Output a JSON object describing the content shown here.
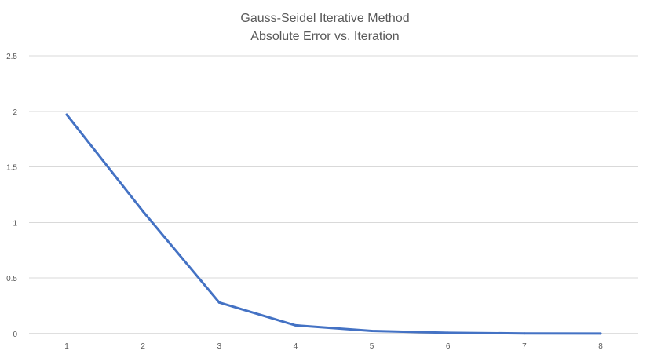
{
  "chart_data": {
    "type": "line",
    "title": "Gauss-Seidel Iterative Method",
    "subtitle": "Absolute Error vs. Iteration",
    "xlabel": "",
    "ylabel": "",
    "categories": [
      "1",
      "2",
      "3",
      "4",
      "5",
      "6",
      "7",
      "8"
    ],
    "series": [
      {
        "values": [
          1.97,
          1.1,
          0.28,
          0.075,
          0.025,
          0.008,
          0.002,
          0.0005
        ],
        "color": "#4472C4"
      }
    ],
    "ylim": [
      0,
      2.5
    ],
    "yticks": [
      "0",
      "0.5",
      "1",
      "1.5",
      "2",
      "2.5"
    ],
    "ytick_values": [
      0,
      0.5,
      1,
      1.5,
      2,
      2.5
    ],
    "grid": true,
    "grid_color": "#d9d9d9",
    "legend": "none"
  }
}
